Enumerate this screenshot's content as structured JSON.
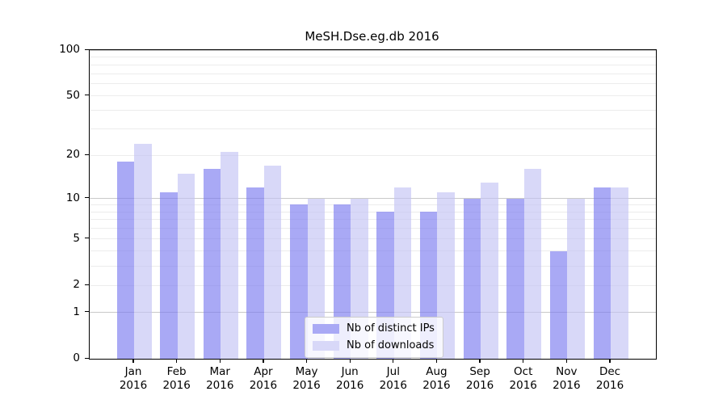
{
  "figure": {
    "background": "#ffffff"
  },
  "chart_data": {
    "type": "bar",
    "title": "MeSH.Dse.eg.db 2016",
    "categories": [
      "Jan 2016",
      "Feb 2016",
      "Mar 2016",
      "Apr 2016",
      "May 2016",
      "Jun 2016",
      "Jul 2016",
      "Aug 2016",
      "Sep 2016",
      "Oct 2016",
      "Nov 2016",
      "Dec 2016"
    ],
    "series": [
      {
        "name": "Nb of distinct IPs",
        "color": "#a9a9f5",
        "values": [
          18,
          11,
          16,
          12,
          9,
          9,
          8,
          8,
          10,
          10,
          4,
          12
        ]
      },
      {
        "name": "Nb of downloads",
        "color": "#d8d8f8",
        "values": [
          24,
          15,
          21,
          17,
          10,
          10,
          12,
          11,
          13,
          16,
          10,
          12
        ]
      }
    ],
    "yscale": "log1p",
    "ylim": [
      0,
      100
    ],
    "ytick_labels": [
      0,
      1,
      2,
      5,
      10,
      20,
      50,
      100
    ],
    "major_gridlines": [
      1,
      10,
      100
    ],
    "minor_gridlines": [
      2,
      3,
      4,
      5,
      6,
      7,
      8,
      9,
      20,
      30,
      40,
      50,
      60,
      70,
      80,
      90
    ],
    "grid": true,
    "legend_position": "lower center"
  },
  "colors": {
    "axis": "#000000",
    "text": "#000000",
    "major_grid": "#c9c9c9",
    "minor_grid": "#ececec",
    "legend_border": "#cccccc"
  }
}
